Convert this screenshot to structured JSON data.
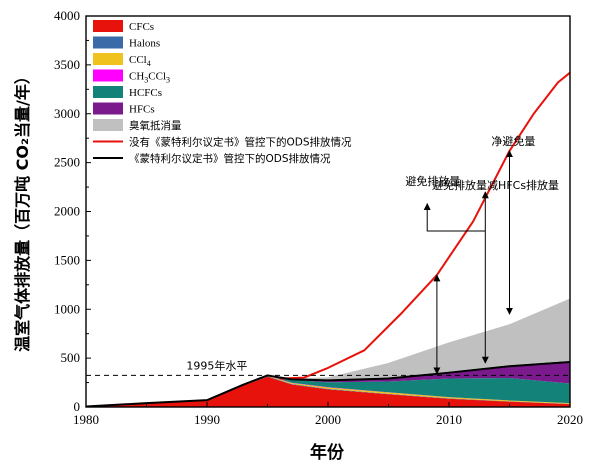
{
  "chart_data": {
    "type": "area",
    "xlabel": "年份",
    "ylabel": "温室气体排放量（百万吨 CO₂当量/年）",
    "xlim": [
      1980,
      2020
    ],
    "ylim": [
      0,
      4000
    ],
    "xticks": [
      1980,
      1990,
      2000,
      2010,
      2020
    ],
    "yticks": [
      0,
      500,
      1000,
      1500,
      2000,
      2500,
      3000,
      3500,
      4000
    ],
    "legend_position": "top-left",
    "series": [
      {
        "name": "CFCs",
        "color": "#e8120c",
        "type": "stacked-area",
        "x": [
          1980,
          1985,
          1990,
          1993,
          1995,
          1997,
          2000,
          2005,
          2010,
          2015,
          2020
        ],
        "values": [
          5,
          40,
          70,
          220,
          310,
          230,
          180,
          130,
          85,
          55,
          30
        ]
      },
      {
        "name": "Halons",
        "color": "#3a6aa8",
        "type": "stacked-area",
        "x": [
          1980,
          1985,
          1990,
          1993,
          1995,
          1997,
          2000,
          2005,
          2010,
          2015,
          2020
        ],
        "values": [
          0,
          0,
          0,
          3,
          5,
          5,
          5,
          4,
          3,
          2,
          2
        ]
      },
      {
        "name": "CCl4",
        "color": "#f0c21e",
        "type": "stacked-area",
        "x": [
          1980,
          1985,
          1990,
          1993,
          1995,
          1997,
          2000,
          2005,
          2010,
          2015,
          2020
        ],
        "values": [
          0,
          0,
          0,
          3,
          5,
          10,
          15,
          15,
          12,
          10,
          8
        ]
      },
      {
        "name": "CH3CCl3",
        "color": "#ff00ff",
        "type": "stacked-area",
        "x": [
          1980,
          1985,
          1990,
          1993,
          1995,
          1997,
          2000,
          2005,
          2010,
          2015,
          2020
        ],
        "values": [
          0,
          0,
          0,
          2,
          3,
          3,
          3,
          2,
          1,
          0,
          0
        ]
      },
      {
        "name": "HCFCs",
        "color": "#138279",
        "type": "stacked-area",
        "x": [
          1980,
          1985,
          1990,
          1993,
          1995,
          1997,
          2000,
          2005,
          2010,
          2015,
          2020
        ],
        "values": [
          0,
          0,
          0,
          0,
          0,
          30,
          50,
          110,
          190,
          230,
          200
        ]
      },
      {
        "name": "HFCs",
        "color": "#7a1a8c",
        "type": "stacked-area",
        "x": [
          1980,
          1985,
          1990,
          1993,
          1995,
          1997,
          2000,
          2005,
          2010,
          2015,
          2020
        ],
        "values": [
          0,
          0,
          0,
          0,
          0,
          5,
          10,
          40,
          70,
          130,
          230
        ]
      },
      {
        "name": "臭氧抵消量",
        "color": "#c0c0c0",
        "type": "stacked-area",
        "x": [
          1980,
          1985,
          1990,
          1993,
          1995,
          1997,
          2000,
          2005,
          2010,
          2015,
          2020
        ],
        "values": [
          0,
          0,
          0,
          0,
          0,
          10,
          40,
          150,
          300,
          420,
          640
        ]
      },
      {
        "name": "没有《蒙特利尔议定书》管控下的ODS排放情况",
        "color": "#e8120c",
        "type": "line",
        "x": [
          1996,
          1998,
          2000,
          2003,
          2006,
          2009,
          2012,
          2015,
          2017,
          2019,
          2020
        ],
        "values": [
          290,
          300,
          400,
          580,
          950,
          1350,
          1900,
          2620,
          3000,
          3320,
          3420
        ]
      },
      {
        "name": "《蒙特利尔议定书》管控下的ODS排放情况",
        "color": "#000000",
        "type": "line",
        "x": [
          1980,
          1985,
          1990,
          1993,
          1995,
          1997,
          2000,
          2005,
          2010,
          2015,
          2020
        ],
        "values": [
          5,
          40,
          70,
          228,
          323,
          283,
          273,
          291,
          351,
          417,
          460
        ]
      }
    ],
    "reference_line": {
      "label": "1995年水平",
      "value": 323
    },
    "annotations": [
      {
        "text": "避免排放量",
        "x": 2009,
        "y_from": 340,
        "y_to": 1350
      },
      {
        "text": "避免排放量减HFCs排放量",
        "x": 2013,
        "y_from": 450,
        "y_to": 2200
      },
      {
        "text": "净避免量",
        "x": 2015,
        "y_from": 950,
        "y_to": 2620
      }
    ]
  }
}
